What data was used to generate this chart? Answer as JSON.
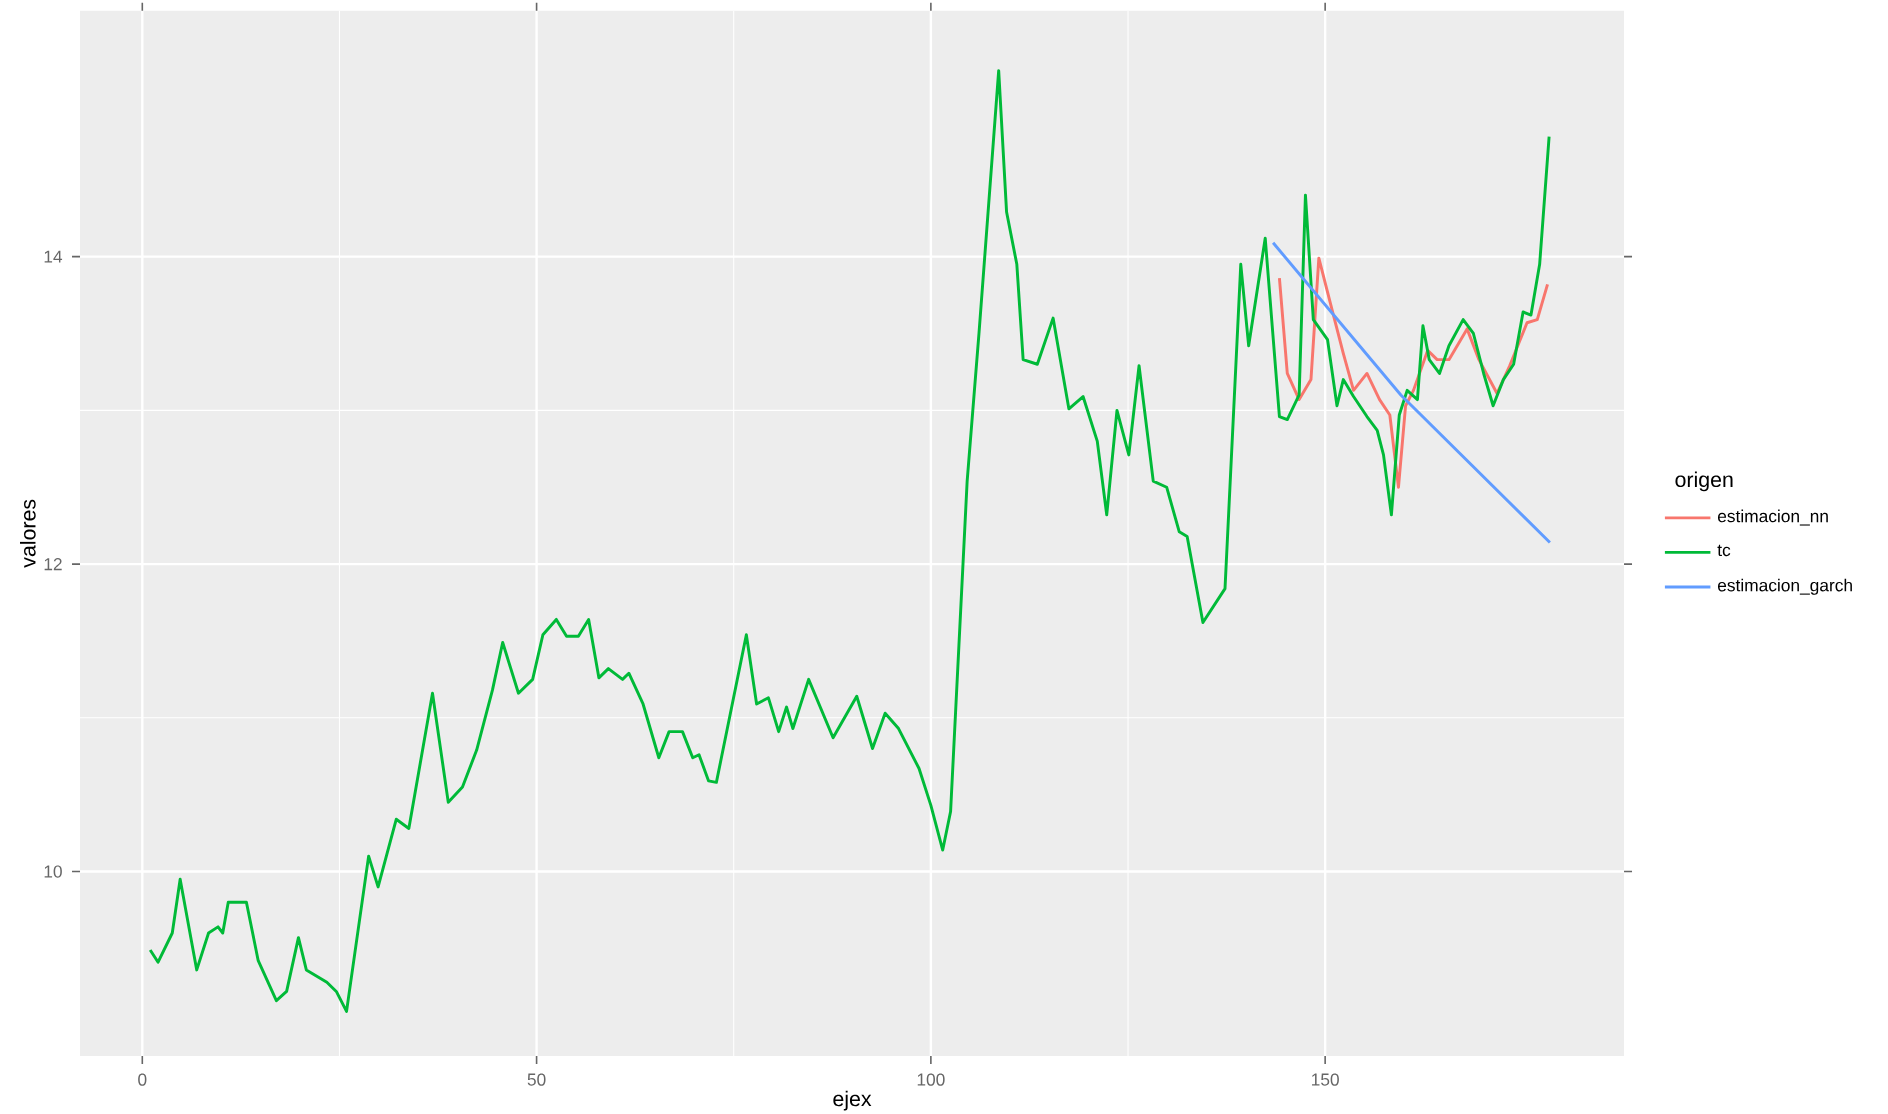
{
  "chart_data": {
    "type": "line",
    "xlabel": "ejex",
    "ylabel": "valores",
    "legend_title": "origen",
    "xlim": [
      -7.9,
      187.9
    ],
    "ylim": [
      8.8,
      15.6
    ],
    "xticks": [
      0,
      50,
      100,
      150
    ],
    "yticks": [
      10,
      12,
      14
    ],
    "grid": true,
    "legend": "right",
    "series": [
      {
        "name": "estimacion_nn",
        "color": "#F8766D",
        "x": [
          144.2,
          145.2,
          146.7,
          148.2,
          149.2,
          151,
          152.3,
          153.6,
          155.3,
          156.9,
          158.2,
          159.3,
          160.2,
          161.2,
          163,
          164.2,
          165.7,
          168,
          169.5,
          171.8,
          173.4,
          175.6,
          176.9,
          178.2
        ],
        "values": [
          13.86,
          13.24,
          13.07,
          13.2,
          13.99,
          13.63,
          13.37,
          13.13,
          13.24,
          13.07,
          12.97,
          12.5,
          13.03,
          13.13,
          13.39,
          13.33,
          13.33,
          13.53,
          13.33,
          13.11,
          13.29,
          13.57,
          13.59,
          13.82
        ]
      },
      {
        "name": "tc",
        "color": "#00BA38",
        "x": [
          1,
          2,
          3.8,
          4.8,
          6.9,
          8.4,
          9.6,
          10.2,
          10.9,
          13.2,
          14.7,
          17,
          18.3,
          19.8,
          20.8,
          23.4,
          24.6,
          25.9,
          28.7,
          29.9,
          32.2,
          33.8,
          36.8,
          38.8,
          40.6,
          42.4,
          44.4,
          45.7,
          47.7,
          49.5,
          50.8,
          52.5,
          53.8,
          55.3,
          56.6,
          57.9,
          59.1,
          60.9,
          61.7,
          63.5,
          65.5,
          66.8,
          68.5,
          69.8,
          70.6,
          71.8,
          72.8,
          76.6,
          77.9,
          79.4,
          80.7,
          81.7,
          82.5,
          84.5,
          87.6,
          90.6,
          92.6,
          94.2,
          95.9,
          98.5,
          100,
          101.5,
          102.5,
          104.6,
          106.1,
          108.6,
          109.6,
          110.9,
          111.7,
          113.5,
          115.5,
          117.5,
          119.3,
          121.1,
          122.3,
          123.6,
          125.1,
          126.4,
          128.2,
          129.9,
          131.5,
          132.5,
          134.5,
          137.3,
          139.3,
          140.3,
          142.4,
          144.2,
          145.2,
          146.7,
          147.5,
          148.5,
          150.3,
          151.5,
          152.3,
          153.6,
          155.3,
          156.6,
          157.4,
          158.4,
          159.4,
          160.4,
          161.7,
          162.4,
          163.2,
          164.5,
          165.7,
          167.5,
          168.8,
          170.1,
          171.3,
          172.6,
          173.9,
          175.1,
          176.1,
          177.2,
          178.4
        ],
        "values": [
          9.49,
          9.41,
          9.6,
          9.95,
          9.36,
          9.6,
          9.64,
          9.6,
          9.8,
          9.8,
          9.42,
          9.16,
          9.22,
          9.57,
          9.36,
          9.28,
          9.22,
          9.09,
          10.1,
          9.9,
          10.34,
          10.28,
          11.16,
          10.45,
          10.55,
          10.79,
          11.18,
          11.49,
          11.16,
          11.25,
          11.54,
          11.64,
          11.53,
          11.53,
          11.64,
          11.26,
          11.32,
          11.25,
          11.29,
          11.09,
          10.74,
          10.91,
          10.91,
          10.74,
          10.76,
          10.59,
          10.58,
          11.54,
          11.09,
          11.13,
          10.91,
          11.07,
          10.93,
          11.25,
          10.87,
          11.14,
          10.8,
          11.03,
          10.93,
          10.67,
          10.43,
          10.14,
          10.39,
          12.54,
          13.5,
          15.21,
          14.29,
          13.95,
          13.33,
          13.3,
          13.6,
          13.01,
          13.09,
          12.8,
          12.32,
          13.0,
          12.71,
          13.29,
          12.54,
          12.5,
          12.21,
          12.18,
          11.62,
          11.84,
          13.95,
          13.42,
          14.12,
          12.96,
          12.94,
          13.1,
          14.4,
          13.59,
          13.46,
          13.03,
          13.2,
          13.09,
          12.96,
          12.87,
          12.71,
          12.32,
          12.97,
          13.13,
          13.07,
          13.55,
          13.33,
          13.24,
          13.42,
          13.59,
          13.5,
          13.24,
          13.03,
          13.2,
          13.3,
          13.64,
          13.62,
          13.95,
          14.78
        ]
      },
      {
        "name": "estimacion_garch",
        "color": "#619CFF",
        "x": [
          143.4,
          159.6,
          178.5
        ],
        "values": [
          14.09,
          13.1,
          12.14
        ]
      }
    ]
  }
}
